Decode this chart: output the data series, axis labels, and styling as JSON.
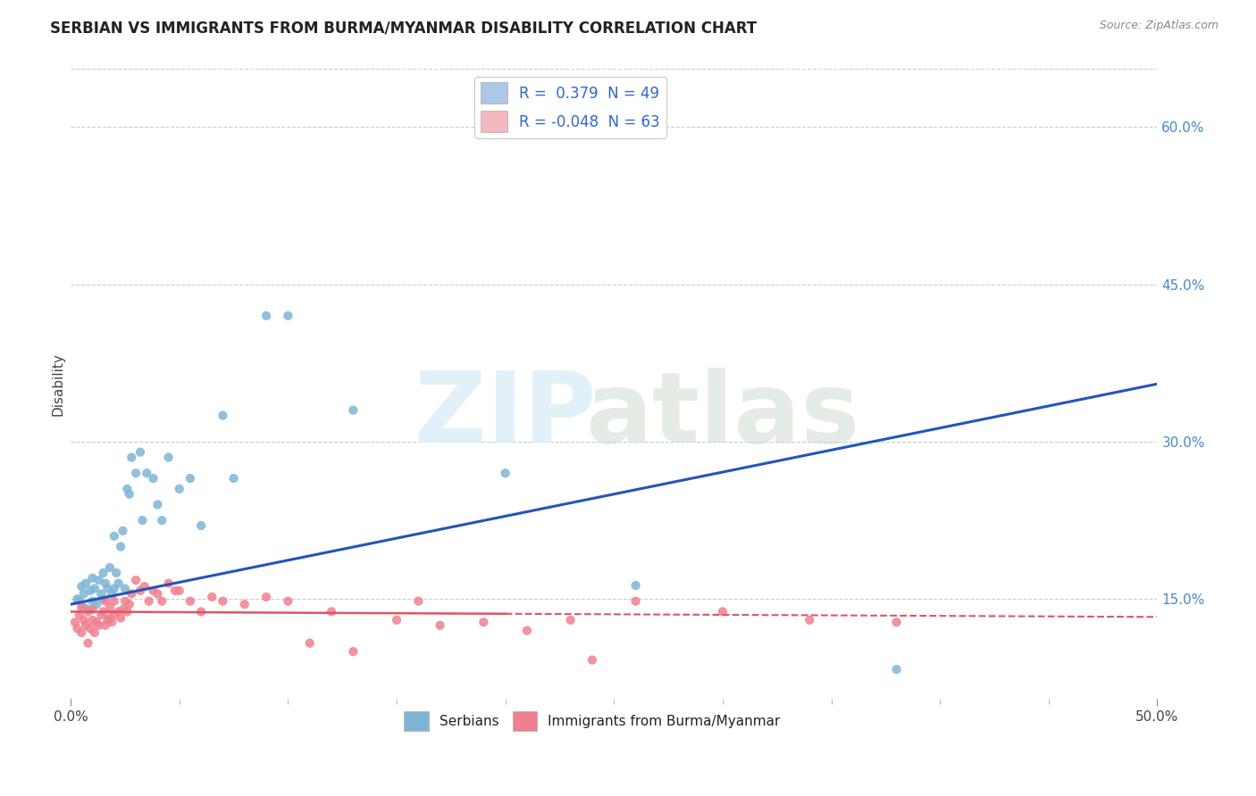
{
  "title": "SERBIAN VS IMMIGRANTS FROM BURMA/MYANMAR DISABILITY CORRELATION CHART",
  "source": "Source: ZipAtlas.com",
  "ylabel": "Disability",
  "xlim": [
    0.0,
    0.5
  ],
  "ylim": [
    0.055,
    0.655
  ],
  "xticks_major": [
    0.0,
    0.5
  ],
  "xtick_major_labels": [
    "0.0%",
    "50.0%"
  ],
  "xticks_minor": [
    0.05,
    0.1,
    0.15,
    0.2,
    0.25,
    0.3,
    0.35,
    0.4,
    0.45
  ],
  "yticks": [
    0.15,
    0.3,
    0.45,
    0.6
  ],
  "ytick_labels": [
    "15.0%",
    "30.0%",
    "45.0%",
    "60.0%"
  ],
  "legend_r_entries": [
    {
      "label_r": "R =  0.379",
      "label_n": "N = 49",
      "color": "#aec6e8"
    },
    {
      "label_r": "R = -0.048",
      "label_n": "N = 63",
      "color": "#f4b8c1"
    }
  ],
  "serbian_color": "#7eb5d6",
  "burma_color": "#f08090",
  "serbian_line_color": "#2255bb",
  "burma_line_color": "#dd5566",
  "bg_color": "#ffffff",
  "grid_color": "#cccccc",
  "serbian_points_x": [
    0.003,
    0.004,
    0.005,
    0.006,
    0.006,
    0.007,
    0.008,
    0.009,
    0.01,
    0.01,
    0.011,
    0.012,
    0.013,
    0.014,
    0.015,
    0.015,
    0.016,
    0.017,
    0.018,
    0.019,
    0.02,
    0.02,
    0.021,
    0.022,
    0.023,
    0.024,
    0.025,
    0.026,
    0.027,
    0.028,
    0.03,
    0.032,
    0.033,
    0.035,
    0.038,
    0.04,
    0.042,
    0.045,
    0.05,
    0.055,
    0.06,
    0.07,
    0.075,
    0.09,
    0.1,
    0.13,
    0.2,
    0.26,
    0.38
  ],
  "serbian_points_y": [
    0.15,
    0.148,
    0.162,
    0.155,
    0.142,
    0.165,
    0.14,
    0.158,
    0.148,
    0.17,
    0.16,
    0.145,
    0.168,
    0.155,
    0.175,
    0.15,
    0.165,
    0.16,
    0.18,
    0.155,
    0.16,
    0.21,
    0.175,
    0.165,
    0.2,
    0.215,
    0.16,
    0.255,
    0.25,
    0.285,
    0.27,
    0.29,
    0.225,
    0.27,
    0.265,
    0.24,
    0.225,
    0.285,
    0.255,
    0.265,
    0.22,
    0.325,
    0.265,
    0.42,
    0.42,
    0.33,
    0.27,
    0.163,
    0.083
  ],
  "burma_points_x": [
    0.002,
    0.003,
    0.004,
    0.005,
    0.005,
    0.006,
    0.007,
    0.008,
    0.008,
    0.009,
    0.01,
    0.01,
    0.011,
    0.012,
    0.013,
    0.014,
    0.015,
    0.016,
    0.016,
    0.017,
    0.018,
    0.018,
    0.019,
    0.02,
    0.02,
    0.022,
    0.023,
    0.024,
    0.025,
    0.026,
    0.027,
    0.028,
    0.03,
    0.032,
    0.034,
    0.036,
    0.038,
    0.04,
    0.042,
    0.045,
    0.048,
    0.05,
    0.055,
    0.06,
    0.065,
    0.07,
    0.08,
    0.09,
    0.1,
    0.11,
    0.12,
    0.13,
    0.15,
    0.16,
    0.17,
    0.19,
    0.21,
    0.23,
    0.24,
    0.26,
    0.3,
    0.34,
    0.38
  ],
  "burma_points_y": [
    0.128,
    0.122,
    0.135,
    0.118,
    0.142,
    0.13,
    0.125,
    0.108,
    0.138,
    0.122,
    0.13,
    0.14,
    0.118,
    0.128,
    0.125,
    0.135,
    0.138,
    0.125,
    0.148,
    0.13,
    0.142,
    0.132,
    0.128,
    0.148,
    0.135,
    0.138,
    0.132,
    0.14,
    0.148,
    0.138,
    0.145,
    0.155,
    0.168,
    0.158,
    0.162,
    0.148,
    0.158,
    0.155,
    0.148,
    0.165,
    0.158,
    0.158,
    0.148,
    0.138,
    0.152,
    0.148,
    0.145,
    0.152,
    0.148,
    0.108,
    0.138,
    0.1,
    0.13,
    0.148,
    0.125,
    0.128,
    0.12,
    0.13,
    0.092,
    0.148,
    0.138,
    0.13,
    0.128
  ]
}
